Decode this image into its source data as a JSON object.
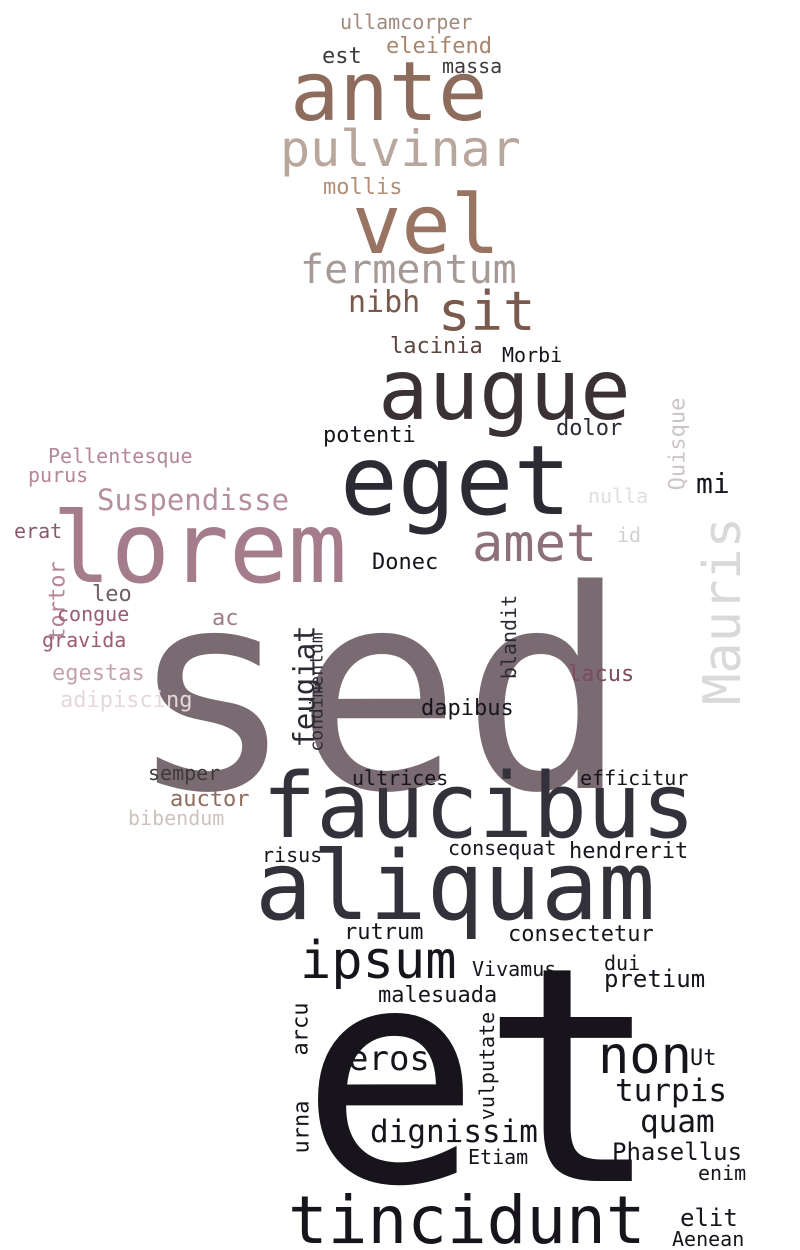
{
  "words": [
    {
      "text": "sed",
      "color": "#7a6b72"
    },
    {
      "text": "et",
      "color": "#17151b"
    },
    {
      "text": "aliquam",
      "color": "#333139"
    },
    {
      "text": "faucibus",
      "color": "#333139"
    },
    {
      "text": "eget",
      "color": "#2c2a33"
    },
    {
      "text": "lorem",
      "color": "#a57c8c"
    },
    {
      "text": "augue",
      "color": "#3a3134"
    },
    {
      "text": "ante",
      "color": "#8d6c5e"
    },
    {
      "text": "tincidunt",
      "color": "#17151b"
    },
    {
      "text": "vel",
      "color": "#9a7462"
    },
    {
      "text": "Mauris",
      "color": "#dad8d8"
    },
    {
      "text": "amet",
      "color": "#8e707c"
    },
    {
      "text": "pulvinar",
      "color": "#b9a69d"
    },
    {
      "text": "ipsum",
      "color": "#17151b"
    },
    {
      "text": "non",
      "color": "#17151b"
    },
    {
      "text": "fermentum",
      "color": "#a79a96"
    },
    {
      "text": "sit",
      "color": "#7a5a4c"
    },
    {
      "text": "eros",
      "color": "#17151b"
    },
    {
      "text": "Suspendisse",
      "color": "#b5909a"
    },
    {
      "text": "dignissim",
      "color": "#17151b"
    },
    {
      "text": "turpis",
      "color": "#17151b"
    },
    {
      "text": "quam",
      "color": "#17151b"
    },
    {
      "text": "Phasellus",
      "color": "#17151b"
    },
    {
      "text": "feugiat",
      "color": "#2c2a33"
    },
    {
      "text": "nibh",
      "color": "#7a5a4c"
    },
    {
      "text": "mollis",
      "color": "#b48e77"
    },
    {
      "text": "lacinia",
      "color": "#5a443c"
    },
    {
      "text": "mi",
      "color": "#17151b"
    },
    {
      "text": "dapibus",
      "color": "#17151b"
    },
    {
      "text": "Quisque",
      "color": "#ccc5c5"
    },
    {
      "text": "dolor",
      "color": "#2c2a33"
    },
    {
      "text": "potenti",
      "color": "#17151b"
    },
    {
      "text": "eleifend",
      "color": "#a8856e"
    },
    {
      "text": "ullamcorper",
      "color": "#a08a7d"
    },
    {
      "text": "est",
      "color": "#3e3a3a"
    },
    {
      "text": "massa",
      "color": "#3e3a3a"
    },
    {
      "text": "Morbi",
      "color": "#17151b"
    },
    {
      "text": "Donec",
      "color": "#17151b"
    },
    {
      "text": "nulla",
      "color": "#e2dede"
    },
    {
      "text": "id",
      "color": "#d4d0d0"
    },
    {
      "text": "Pellentesque",
      "color": "#b38796"
    },
    {
      "text": "purus",
      "color": "#b38796"
    },
    {
      "text": "erat",
      "color": "#8a5a6a"
    },
    {
      "text": "tortor",
      "color": "#b38796"
    },
    {
      "text": "leo",
      "color": "#6f5f66"
    },
    {
      "text": "congue",
      "color": "#9a5c70"
    },
    {
      "text": "gravida",
      "color": "#9a5c70"
    },
    {
      "text": "ac",
      "color": "#a07c86"
    },
    {
      "text": "egestas",
      "color": "#c4a2ae"
    },
    {
      "text": "adipiscing",
      "color": "#e6d7d9"
    },
    {
      "text": "lacus",
      "color": "#7d4a5e"
    },
    {
      "text": "blandit",
      "color": "#2c2a33"
    },
    {
      "text": "condimentum",
      "color": "#2c2a33"
    },
    {
      "text": "semper",
      "color": "#3e3a3a"
    },
    {
      "text": "auctor",
      "color": "#8d6c5e"
    },
    {
      "text": "bibendum",
      "color": "#cfc2be"
    },
    {
      "text": "ultrices",
      "color": "#17151b"
    },
    {
      "text": "efficitur",
      "color": "#17151b"
    },
    {
      "text": "risus",
      "color": "#17151b"
    },
    {
      "text": "consequat",
      "color": "#17151b"
    },
    {
      "text": "hendrerit",
      "color": "#17151b"
    },
    {
      "text": "rutrum",
      "color": "#17151b"
    },
    {
      "text": "consectetur",
      "color": "#17151b"
    },
    {
      "text": "Vivamus",
      "color": "#17151b"
    },
    {
      "text": "dui",
      "color": "#17151b"
    },
    {
      "text": "pretium",
      "color": "#17151b"
    },
    {
      "text": "malesuada",
      "color": "#17151b"
    },
    {
      "text": "arcu",
      "color": "#17151b"
    },
    {
      "text": "vulputate",
      "color": "#17151b"
    },
    {
      "text": "Ut",
      "color": "#17151b"
    },
    {
      "text": "urna",
      "color": "#17151b"
    },
    {
      "text": "Etiam",
      "color": "#17151b"
    },
    {
      "text": "enim",
      "color": "#17151b"
    },
    {
      "text": "elit",
      "color": "#17151b"
    },
    {
      "text": "Aenean",
      "color": "#17151b"
    }
  ]
}
